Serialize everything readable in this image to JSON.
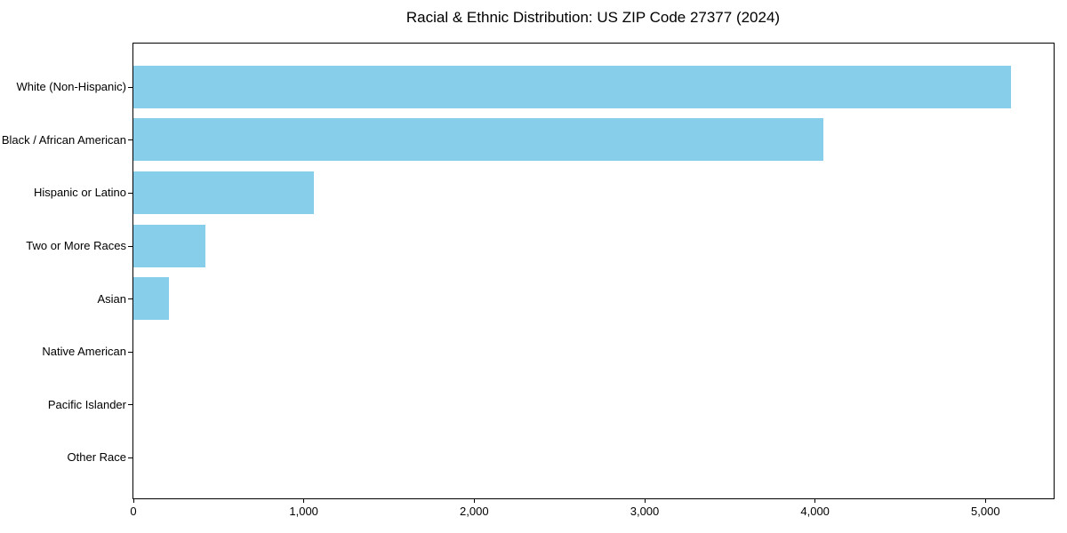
{
  "figure": {
    "background": "#ffffff",
    "axis_color": "#000000",
    "text_color": "#000000"
  },
  "chart_data": {
    "type": "bar",
    "orientation": "horizontal",
    "title": "Racial & Ethnic Distribution: US ZIP Code 27377 (2024)",
    "categories": [
      "White (Non-Hispanic)",
      "Black / African American",
      "Hispanic or Latino",
      "Two or More Races",
      "Asian",
      "Native American",
      "Pacific Islander",
      "Other Race"
    ],
    "values": [
      5150,
      4050,
      1060,
      420,
      210,
      0,
      0,
      0
    ],
    "xlabel": "",
    "ylabel": "",
    "xlim": [
      0,
      5400
    ],
    "xticks": [
      0,
      1000,
      2000,
      3000,
      4000,
      5000
    ],
    "xtick_labels": [
      "0",
      "1,000",
      "2,000",
      "3,000",
      "4,000",
      "5,000"
    ],
    "bar_color": "#87CEEB",
    "grid": false,
    "legend_position": "none"
  }
}
